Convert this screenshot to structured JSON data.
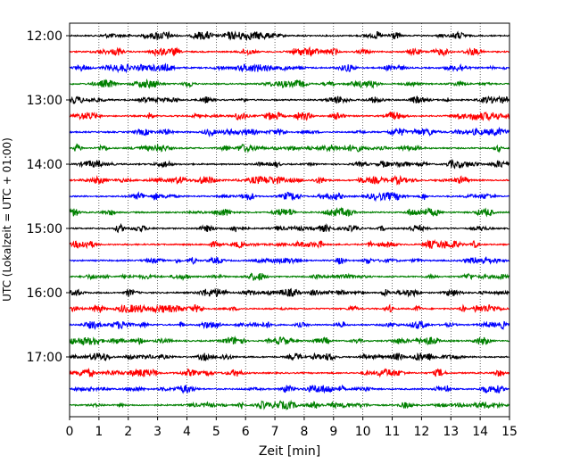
{
  "chart_data": {
    "type": "line",
    "title": "",
    "xlabel": "Zeit  [min]",
    "ylabel": "UTC (Lokalzeit = UTC + 01:00)",
    "xlim": [
      0,
      15
    ],
    "x_ticks": [
      "0",
      "1",
      "2",
      "3",
      "4",
      "5",
      "6",
      "7",
      "8",
      "9",
      "10",
      "11",
      "12",
      "13",
      "14",
      "15"
    ],
    "y_tick_labels": [
      "12:00",
      "13:00",
      "14:00",
      "15:00",
      "16:00",
      "17:00"
    ],
    "grid": "vertical dotted at each minute",
    "trace_interval_minutes": 15,
    "trace_start_times": [
      "12:00",
      "12:15",
      "12:30",
      "12:45",
      "13:00",
      "13:15",
      "13:30",
      "13:45",
      "14:00",
      "14:15",
      "14:30",
      "14:45",
      "15:00",
      "15:15",
      "15:30",
      "15:45",
      "16:00",
      "16:15",
      "16:30",
      "16:45",
      "17:00",
      "17:15",
      "17:30",
      "17:45"
    ],
    "trace_colors": [
      "#000000",
      "#ff0000",
      "#0000ff",
      "#008000"
    ]
  }
}
